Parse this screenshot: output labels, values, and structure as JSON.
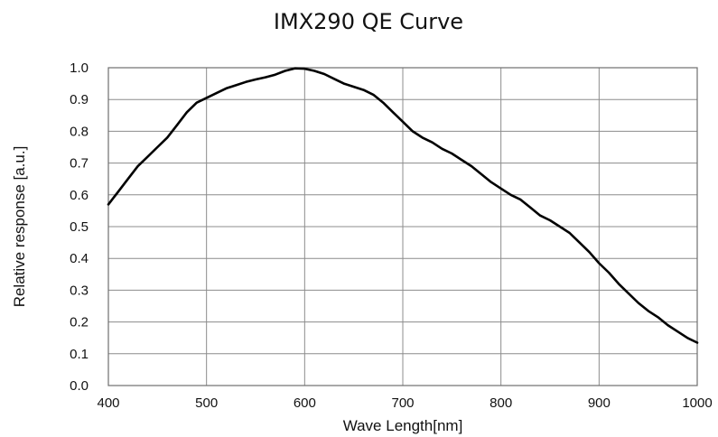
{
  "chart_data": {
    "type": "line",
    "title": "IMX290 QE Curve",
    "xlabel": "Wave Length[nm]",
    "ylabel": "Relative response [a.u.]",
    "xlim": [
      400,
      1000
    ],
    "ylim": [
      0,
      1.0
    ],
    "grid": true,
    "x_ticks": [
      "400",
      "500",
      "600",
      "700",
      "800",
      "900",
      "1000"
    ],
    "y_ticks": [
      "0.0",
      "0.1",
      "0.2",
      "0.3",
      "0.4",
      "0.5",
      "0.6",
      "0.7",
      "0.8",
      "0.9",
      "1.0"
    ],
    "series": [
      {
        "color": "#000000",
        "x": [
          400,
          410,
          420,
          430,
          440,
          450,
          460,
          470,
          480,
          490,
          500,
          510,
          520,
          530,
          540,
          550,
          560,
          570,
          580,
          590,
          600,
          610,
          620,
          630,
          640,
          650,
          660,
          670,
          680,
          690,
          700,
          710,
          720,
          730,
          740,
          750,
          760,
          770,
          780,
          790,
          800,
          810,
          820,
          830,
          840,
          850,
          860,
          870,
          880,
          890,
          900,
          910,
          920,
          930,
          940,
          950,
          960,
          970,
          980,
          990,
          1000
        ],
        "y": [
          0.57,
          0.61,
          0.65,
          0.69,
          0.72,
          0.75,
          0.78,
          0.82,
          0.86,
          0.89,
          0.905,
          0.92,
          0.935,
          0.945,
          0.955,
          0.963,
          0.97,
          0.978,
          0.99,
          0.998,
          0.997,
          0.99,
          0.98,
          0.965,
          0.95,
          0.94,
          0.93,
          0.915,
          0.89,
          0.86,
          0.83,
          0.8,
          0.78,
          0.765,
          0.745,
          0.73,
          0.71,
          0.69,
          0.665,
          0.64,
          0.62,
          0.6,
          0.585,
          0.56,
          0.535,
          0.52,
          0.5,
          0.48,
          0.45,
          0.42,
          0.385,
          0.355,
          0.32,
          0.29,
          0.26,
          0.235,
          0.215,
          0.19,
          0.17,
          0.15,
          0.135
        ]
      }
    ]
  }
}
